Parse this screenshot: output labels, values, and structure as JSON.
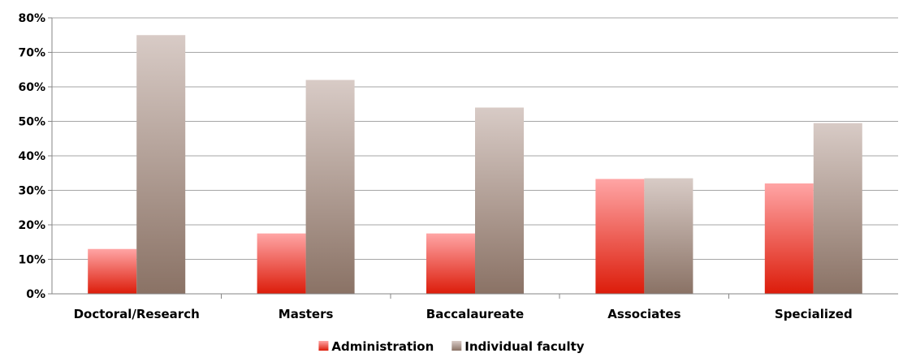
{
  "chart_data": {
    "type": "bar",
    "categories": [
      "Doctoral/Research",
      "Masters",
      "Baccalaureate",
      "Associates",
      "Specialized"
    ],
    "series": [
      {
        "name": "Administration",
        "values": [
          13,
          17.5,
          17.5,
          33.3,
          32
        ],
        "color_top": "#ffa5a5",
        "color_bottom": "#dc1c0a"
      },
      {
        "name": "Individual faculty",
        "values": [
          75,
          62,
          54,
          33.5,
          49.5
        ],
        "color_top": "#d8cbc6",
        "color_bottom": "#8a7265"
      }
    ],
    "ylim": [
      0,
      80
    ],
    "ytick_step": 10,
    "ytick_labels": [
      "0%",
      "10%",
      "20%",
      "30%",
      "40%",
      "50%",
      "60%",
      "70%",
      "80%"
    ],
    "grid": true,
    "grid_color": "#a6a6a6",
    "legend_position": "bottom"
  }
}
